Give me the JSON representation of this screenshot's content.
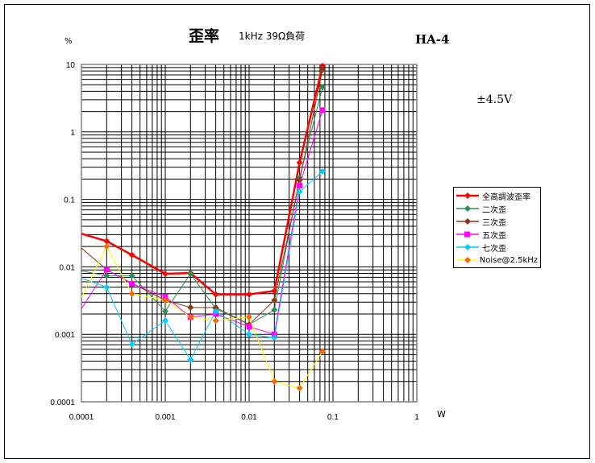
{
  "chart_data": {
    "type": "line",
    "title": "歪率",
    "subtitle": "1kHz 39Ω負荷",
    "model": "HA-4",
    "supply": "±4.5V",
    "ylabel": "%",
    "xlabel": "W",
    "xscale": "log",
    "yscale": "log",
    "xlim": [
      0.0001,
      1
    ],
    "ylim": [
      0.0001,
      10
    ],
    "xticks": [
      "0.0001",
      "0.001",
      "0.01",
      "0.1",
      "1"
    ],
    "yticks": [
      "10",
      "1",
      "0.1",
      "0.01",
      "0.001",
      "0.0001"
    ],
    "grid": true,
    "legend_position": "right",
    "x": [
      0.0001,
      0.0002,
      0.0004,
      0.001,
      0.002,
      0.004,
      0.01,
      0.02,
      0.04,
      0.075
    ],
    "series": [
      {
        "name": "全高調波歪率",
        "color": "#ff0000",
        "marker": "diamond",
        "width": 2.5,
        "values": [
          0.031,
          0.024,
          0.015,
          0.0079,
          0.0081,
          0.0039,
          0.0039,
          0.0044,
          0.35,
          9.5
        ]
      },
      {
        "name": "二次歪",
        "color": "#2e8b57",
        "marker": "diamond",
        "width": 1,
        "values": [
          0.0087,
          0.0074,
          0.0074,
          0.0022,
          0.0079,
          0.0024,
          0.0014,
          0.0023,
          0.21,
          4.6
        ]
      },
      {
        "name": "三次歪",
        "color": "#8b3a0f",
        "marker": "diamond",
        "width": 1,
        "values": [
          0.019,
          0.0091,
          0.0057,
          0.0032,
          0.0025,
          0.0025,
          0.0014,
          0.0032,
          0.19,
          8.3
        ]
      },
      {
        "name": "五次歪",
        "color": "#ff00ff",
        "marker": "square",
        "width": 1,
        "values": [
          0.0024,
          0.0091,
          0.0056,
          0.0036,
          0.0018,
          0.002,
          0.0013,
          0.001,
          0.16,
          2.1
        ]
      },
      {
        "name": "七次歪",
        "color": "#00ccff",
        "marker": "diamond",
        "width": 1,
        "values": [
          0.0068,
          0.005,
          0.00071,
          0.0016,
          0.00042,
          0.0022,
          0.001,
          0.00089,
          0.13,
          0.26
        ]
      },
      {
        "name": "Noise@2.5kHz",
        "color": "#ffff00",
        "markerColor": "#ff6600",
        "marker": "diamond",
        "width": 1,
        "values": [
          0.0035,
          0.02,
          0.004,
          0.0032,
          0.0018,
          0.0016,
          0.0018,
          0.0002,
          0.00016,
          0.00056
        ]
      }
    ]
  }
}
